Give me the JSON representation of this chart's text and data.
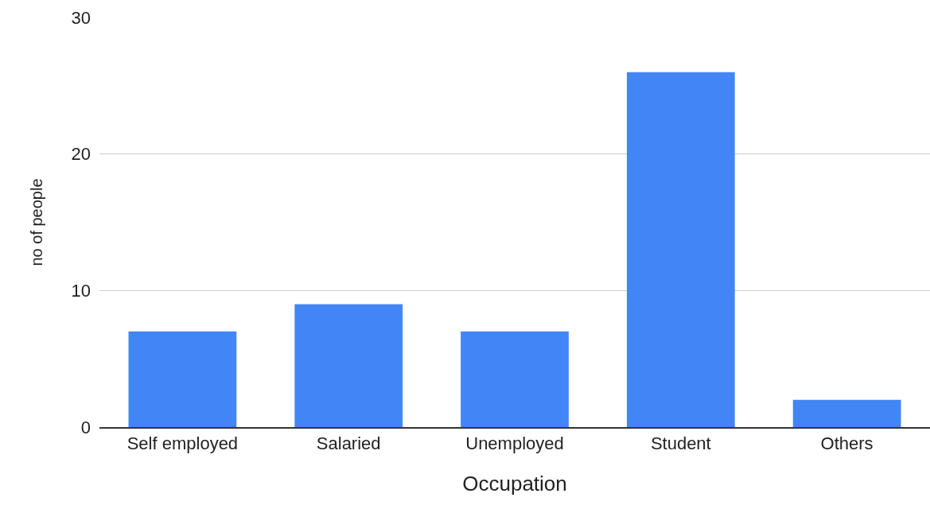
{
  "chart_data": {
    "type": "bar",
    "xlabel": "Occupation",
    "ylabel": "no of people",
    "categories": [
      "Self employed",
      "Salaried",
      "Unemployed",
      "Student",
      "Others"
    ],
    "values": [
      7,
      9,
      7,
      26,
      2
    ],
    "color": "#4285f4",
    "ylim": [
      0,
      30
    ],
    "yticks": [
      0,
      10,
      20,
      30
    ],
    "grid": "y"
  }
}
